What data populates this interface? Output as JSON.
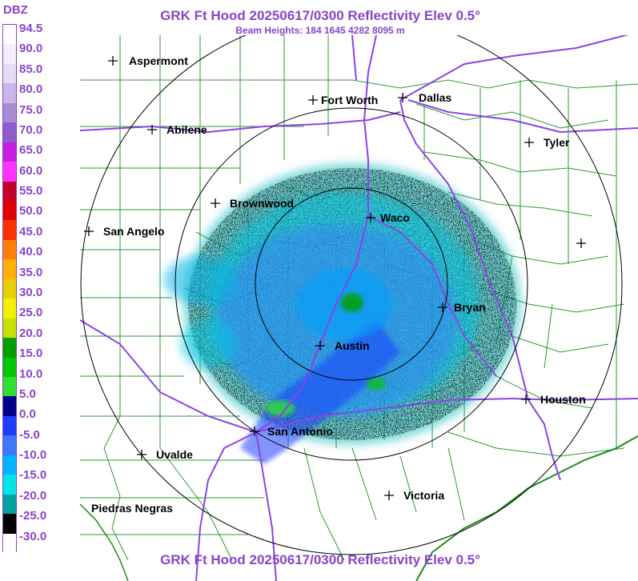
{
  "title": "GRK Ft Hood 20250617/0300 Reflectivity Elev 0.5°",
  "subtitle": "Beam Heights: 184 1645 4282 8095 m",
  "footer": "GRK Ft Hood 20250617/0300 Reflectivity Elev 0.5°",
  "colorbar": {
    "unit": "DBZ",
    "labels": [
      "94.5",
      "90.0",
      "85.0",
      "80.0",
      "75.0",
      "70.0",
      "65.0",
      "60.0",
      "55.0",
      "50.0",
      "45.0",
      "40.0",
      "35.0",
      "30.0",
      "25.0",
      "20.0",
      "15.0",
      "10.0",
      "5.0",
      "0.0",
      "-5.0",
      "-10.0",
      "-15.0",
      "-20.0",
      "-25.0",
      "-30.0"
    ],
    "colors": [
      "#ffffff",
      "#f4eefa",
      "#e6dcf2",
      "#c9b5e6",
      "#a98bd6",
      "#8e5ccd",
      "#c81ee0",
      "#ff33ff",
      "#c0002b",
      "#e00000",
      "#ff3300",
      "#ff7f00",
      "#ffb000",
      "#e6d000",
      "#f0f000",
      "#c8e000",
      "#00a000",
      "#00c800",
      "#30e030",
      "#00008c",
      "#1e3cff",
      "#3c78ff",
      "#00b4ff",
      "#00e6e6",
      "#00a0a0",
      "#000000",
      "#ffffff"
    ]
  },
  "cities": [
    {
      "name": "Aspermont"
    },
    {
      "name": "Fort Worth"
    },
    {
      "name": "Dallas"
    },
    {
      "name": "Abilene"
    },
    {
      "name": "Tyler"
    },
    {
      "name": "Brownwood"
    },
    {
      "name": "Waco"
    },
    {
      "name": "San Angelo"
    },
    {
      "name": "Bryan"
    },
    {
      "name": "Austin"
    },
    {
      "name": "Houston"
    },
    {
      "name": "San Antonio"
    },
    {
      "name": "Uvalde"
    },
    {
      "name": "Victoria"
    },
    {
      "name": "Piedras Negras"
    },
    {
      "name": ""
    }
  ]
}
